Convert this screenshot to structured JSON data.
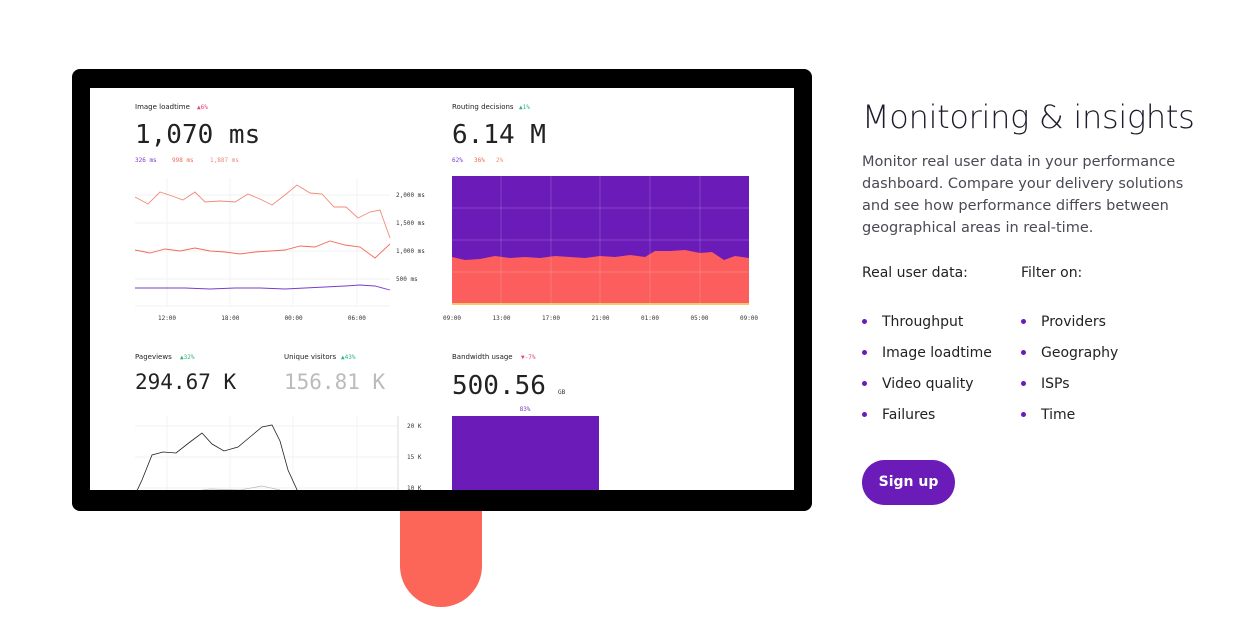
{
  "dashboard": {
    "image_loadtime": {
      "label": "Image loadtime",
      "change": "▲6%",
      "value": "1,070 ms",
      "breakdown": [
        "326 ms",
        "998 ms",
        "1,887 ms"
      ],
      "yticks": [
        "2,000 ms",
        "1,500 ms",
        "1,000 ms",
        "500 ms"
      ],
      "xticks": [
        "12:00",
        "18:00",
        "00:00",
        "06:00"
      ]
    },
    "routing": {
      "label": "Routing decisions",
      "change": "▲1%",
      "value": "6.14 M",
      "breakdown": [
        "62%",
        "36%",
        "2%"
      ],
      "xticks": [
        "09:00",
        "13:00",
        "17:00",
        "21:00",
        "01:00",
        "05:00",
        "09:00"
      ]
    },
    "pageviews": {
      "label": "Pageviews",
      "change": "▲32%",
      "value": "294.67 K"
    },
    "visitors": {
      "label": "Unique visitors",
      "change": "▲43%",
      "value": "156.81 K"
    },
    "traffic_yticks": [
      "20 K",
      "15 K",
      "10 K"
    ],
    "bandwidth": {
      "label": "Bandwidth usage",
      "change": "▼-7%",
      "value": "500.56",
      "unit": "GB",
      "bar_label": "83%"
    }
  },
  "content": {
    "title": "Monitoring & insights",
    "body": "Monitor real user data in your performance dashboard. Compare your delivery solutions and see how performance differs between geographical areas in real-time.",
    "real_user_data": {
      "heading": "Real user data:",
      "items": [
        "Throughput",
        "Image loadtime",
        "Video quality",
        "Failures"
      ]
    },
    "filter_on": {
      "heading": "Filter on:",
      "items": [
        "Providers",
        "Geography",
        "ISPs",
        "Time"
      ]
    },
    "button": "Sign up"
  }
}
